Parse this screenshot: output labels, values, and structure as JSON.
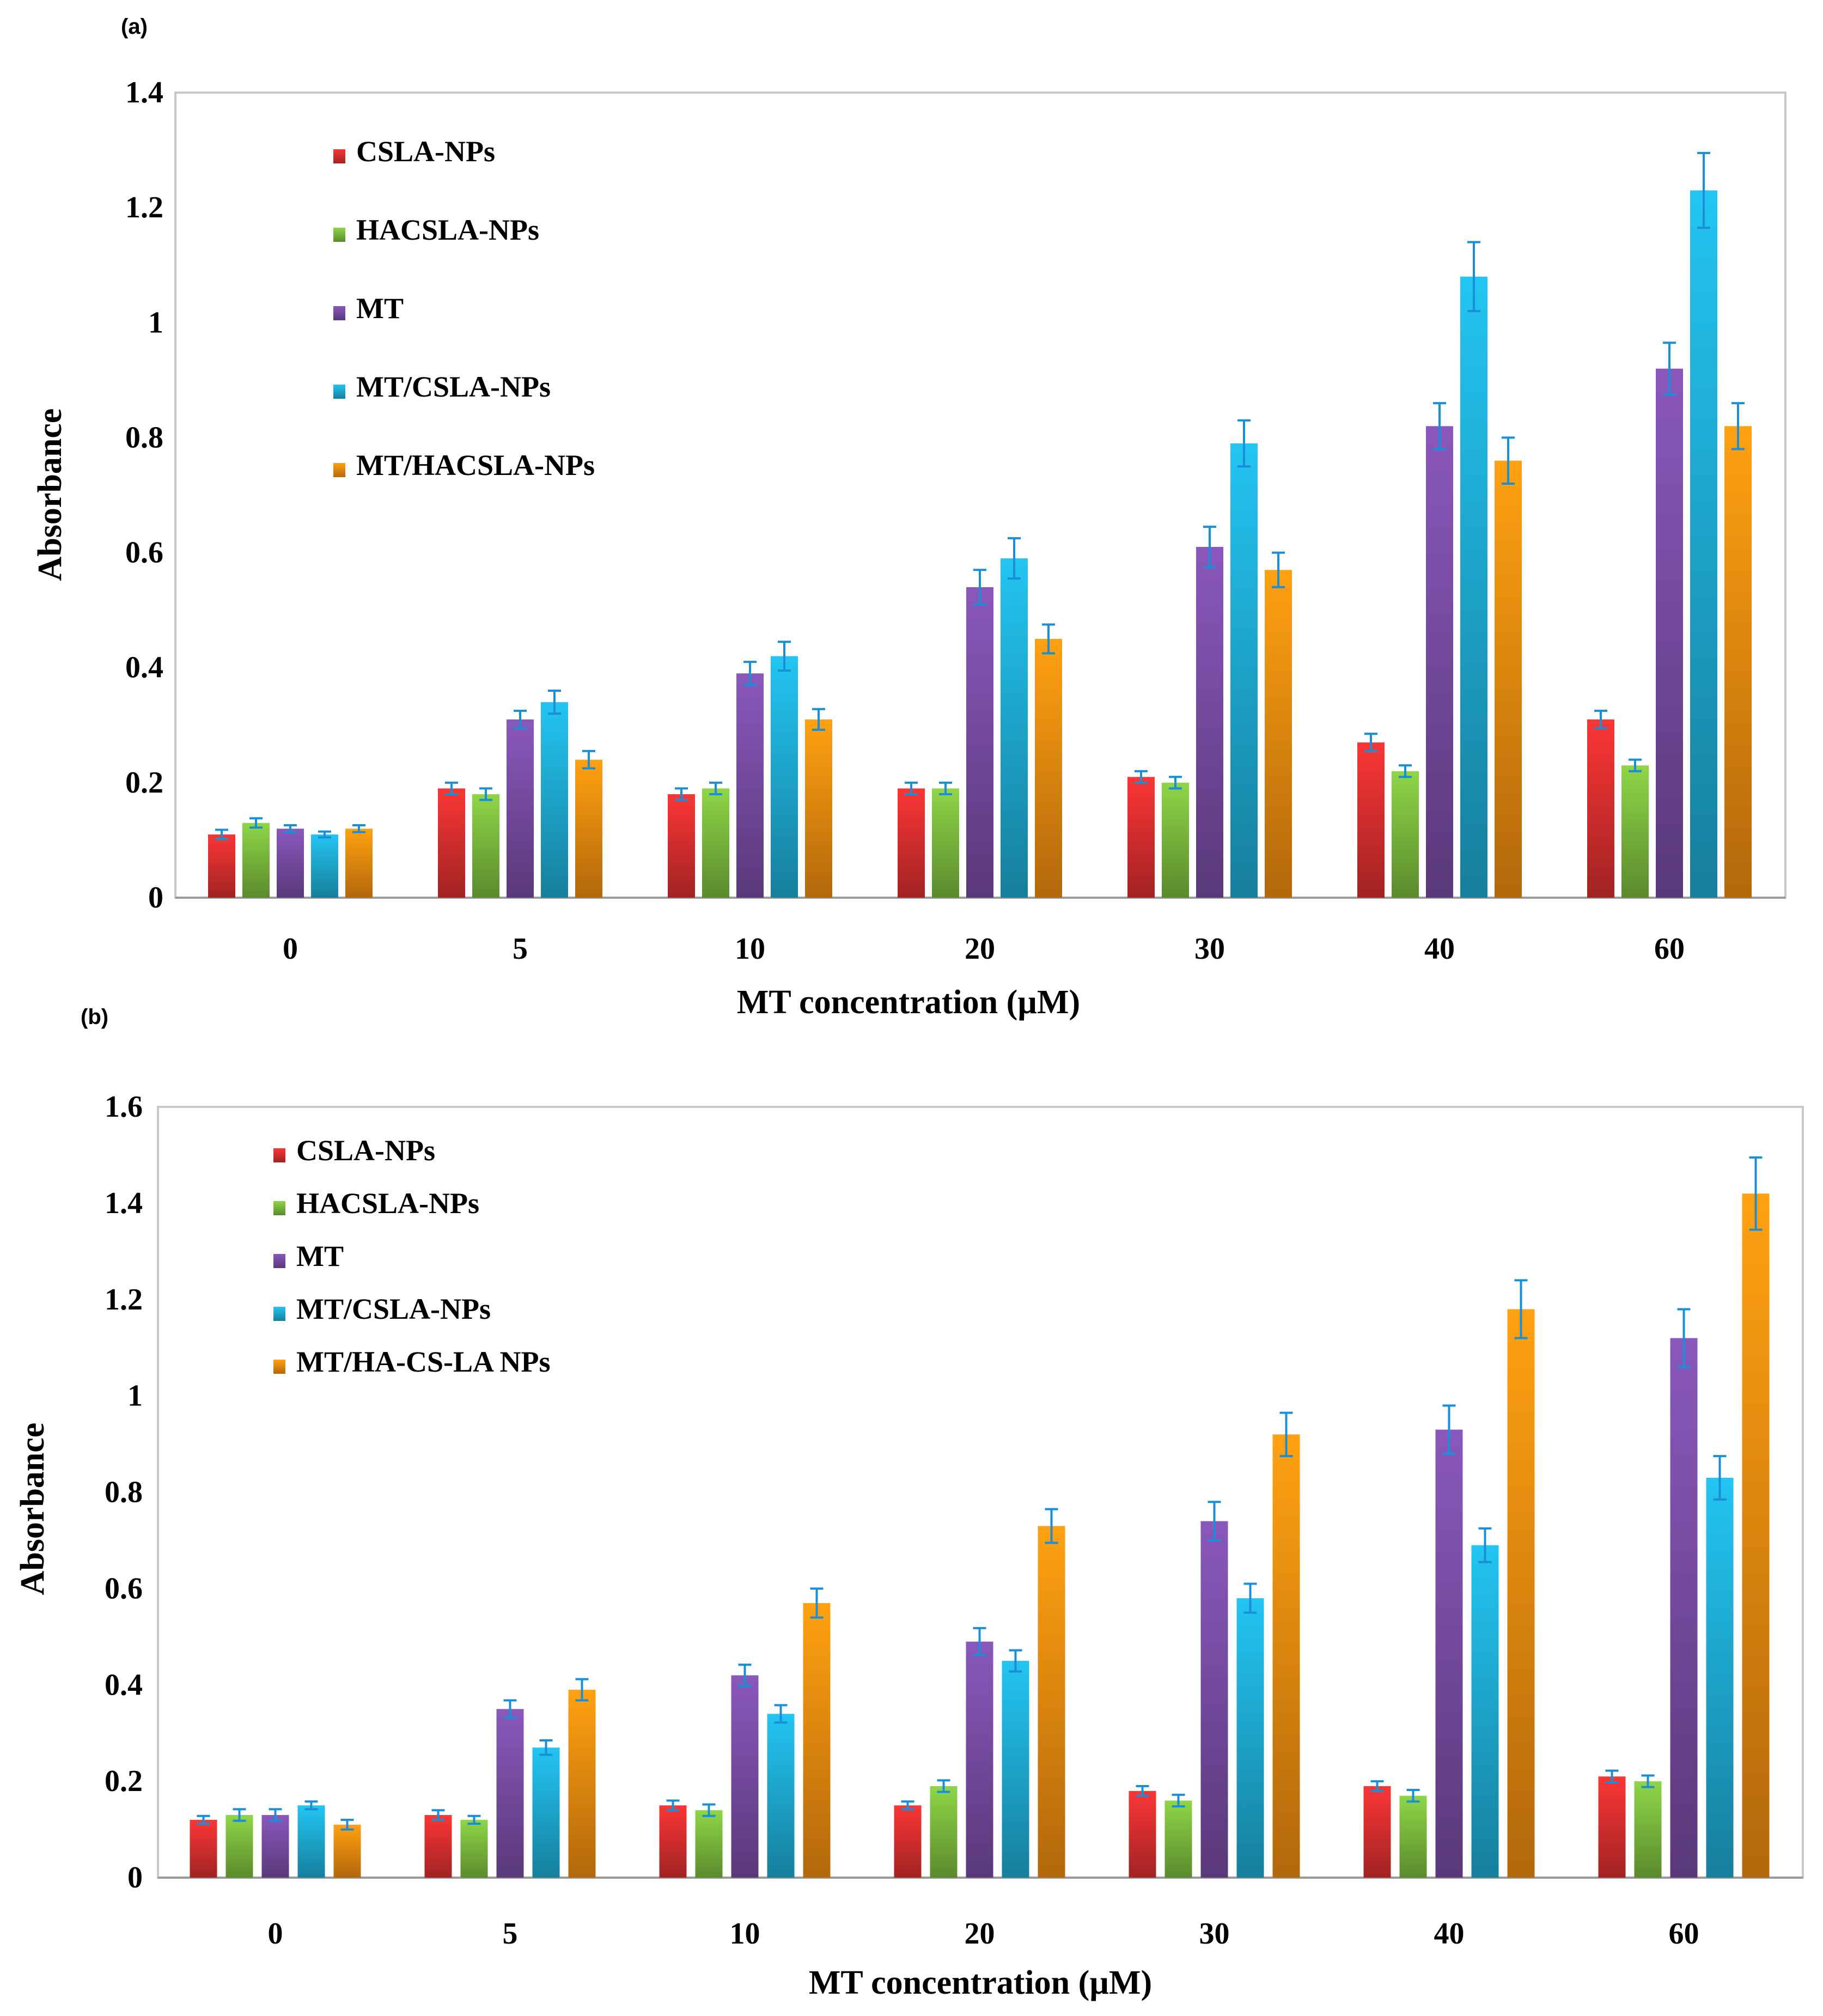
{
  "chart_data": [
    {
      "panel": "(a)",
      "type": "bar",
      "xlabel": "MT  concentration  (µM)",
      "ylabel": "Absorbance",
      "ylim": [
        0,
        1.4
      ],
      "yticks": [
        "0",
        "0.2",
        "0.4",
        "0.6",
        "0.8",
        "1",
        "1.2",
        "1.4"
      ],
      "categories": [
        "0",
        "5",
        "10",
        "20",
        "30",
        "40",
        "60"
      ],
      "legend_position": "top-left",
      "series": [
        {
          "name": "CSLA-NPs",
          "color": "#e03030",
          "values": [
            0.11,
            0.19,
            0.18,
            0.19,
            0.21,
            0.27,
            0.31
          ],
          "errors": [
            0.008,
            0.01,
            0.01,
            0.01,
            0.01,
            0.015,
            0.015
          ]
        },
        {
          "name": "HACSLA-NPs",
          "color": "#7fbf3f",
          "values": [
            0.13,
            0.18,
            0.19,
            0.19,
            0.2,
            0.22,
            0.23
          ],
          "errors": [
            0.008,
            0.01,
            0.01,
            0.01,
            0.01,
            0.01,
            0.01
          ]
        },
        {
          "name": "MT",
          "color": "#7b4fa8",
          "values": [
            0.12,
            0.31,
            0.39,
            0.54,
            0.61,
            0.82,
            0.92
          ],
          "errors": [
            0.006,
            0.015,
            0.02,
            0.03,
            0.035,
            0.04,
            0.045
          ]
        },
        {
          "name": "MT/CSLA-NPs",
          "color": "#1fb0d8",
          "values": [
            0.11,
            0.34,
            0.42,
            0.59,
            0.79,
            1.08,
            1.23
          ],
          "errors": [
            0.005,
            0.02,
            0.025,
            0.035,
            0.04,
            0.06,
            0.065
          ]
        },
        {
          "name": "MT/HACSLA-NPs",
          "color": "#f7900f",
          "values": [
            0.12,
            0.24,
            0.31,
            0.45,
            0.57,
            0.76,
            0.82
          ],
          "errors": [
            0.006,
            0.015,
            0.018,
            0.025,
            0.03,
            0.04,
            0.04
          ]
        }
      ]
    },
    {
      "panel": "(b)",
      "type": "bar",
      "xlabel": "MT  concentration  (µM)",
      "ylabel": "Absorbance",
      "ylim": [
        0,
        1.6
      ],
      "yticks": [
        "0",
        "0.2",
        "0.4",
        "0.6",
        "0.8",
        "1",
        "1.2",
        "1.4",
        "1.6"
      ],
      "categories": [
        "0",
        "5",
        "10",
        "20",
        "30",
        "40",
        "60"
      ],
      "legend_position": "top-left",
      "series": [
        {
          "name": "CSLA-NPs",
          "color": "#e03030",
          "values": [
            0.12,
            0.13,
            0.15,
            0.15,
            0.18,
            0.19,
            0.21
          ],
          "errors": [
            0.008,
            0.01,
            0.01,
            0.008,
            0.01,
            0.01,
            0.012
          ]
        },
        {
          "name": "HACSLA-NPs",
          "color": "#7fbf3f",
          "values": [
            0.13,
            0.12,
            0.14,
            0.19,
            0.16,
            0.17,
            0.2
          ],
          "errors": [
            0.012,
            0.008,
            0.012,
            0.012,
            0.012,
            0.012,
            0.012
          ]
        },
        {
          "name": "MT",
          "color": "#7b4fa8",
          "values": [
            0.13,
            0.35,
            0.42,
            0.49,
            0.74,
            0.93,
            1.12
          ],
          "errors": [
            0.012,
            0.018,
            0.022,
            0.028,
            0.04,
            0.05,
            0.06
          ]
        },
        {
          "name": "MT/CSLA-NPs",
          "color": "#1fb0d8",
          "values": [
            0.15,
            0.27,
            0.34,
            0.45,
            0.58,
            0.69,
            0.83
          ],
          "errors": [
            0.008,
            0.015,
            0.018,
            0.022,
            0.03,
            0.035,
            0.045
          ]
        },
        {
          "name": "MT/HA-CS-LA NPs",
          "color": "#f7900f",
          "values": [
            0.11,
            0.39,
            0.57,
            0.73,
            0.92,
            1.18,
            1.42
          ],
          "errors": [
            0.01,
            0.022,
            0.03,
            0.035,
            0.045,
            0.06,
            0.075
          ]
        }
      ]
    }
  ]
}
